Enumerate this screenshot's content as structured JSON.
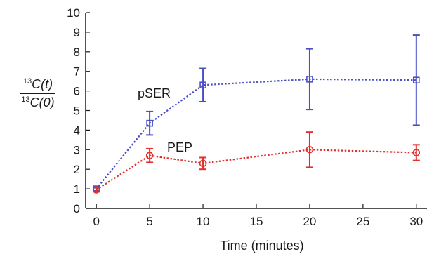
{
  "chart_data": {
    "type": "line",
    "xlabel": "Time (minutes)",
    "ylabel": {
      "numerator_sup": "13",
      "numerator": "C(t)",
      "denominator_sup": "13",
      "denominator": "C(0)"
    },
    "xlim": [
      -1,
      31
    ],
    "ylim": [
      0,
      10
    ],
    "xticks": [
      0,
      5,
      10,
      15,
      20,
      25,
      30
    ],
    "yticks": [
      0,
      1,
      2,
      3,
      4,
      5,
      6,
      7,
      8,
      9,
      10
    ],
    "grid": false,
    "series": [
      {
        "name": "pSER",
        "marker": "square",
        "color": "#4a4fc4",
        "x": [
          0,
          5,
          10,
          20,
          30
        ],
        "y": [
          1.0,
          4.35,
          6.3,
          6.6,
          6.55
        ],
        "error": [
          0.1,
          0.6,
          0.85,
          1.55,
          2.3
        ]
      },
      {
        "name": "PEP",
        "marker": "circle",
        "color": "#e0302c",
        "x": [
          0,
          5,
          10,
          20,
          30
        ],
        "y": [
          0.95,
          2.7,
          2.3,
          3.0,
          2.85
        ],
        "error": [
          0.1,
          0.35,
          0.3,
          0.9,
          0.4
        ]
      }
    ]
  }
}
